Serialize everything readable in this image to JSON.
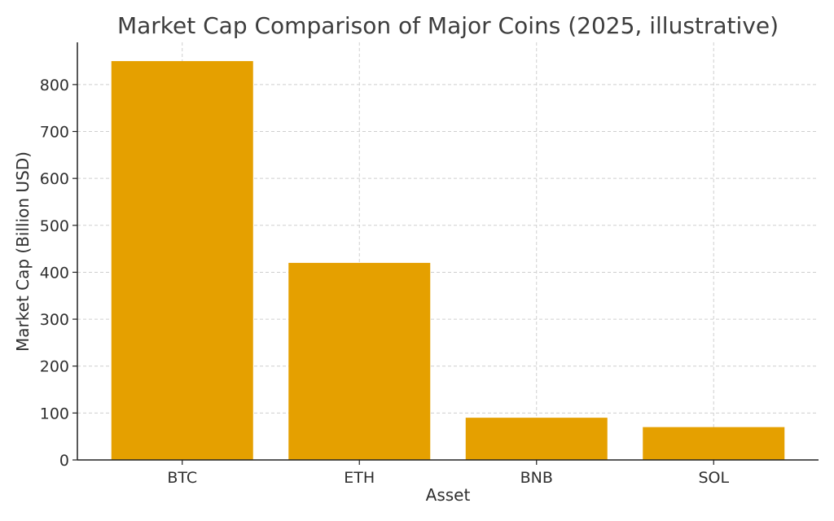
{
  "chart_data": {
    "type": "bar",
    "title": "Market Cap Comparison of Major Coins (2025, illustrative)",
    "xlabel": "Asset",
    "ylabel": "Market Cap (Billion USD)",
    "categories": [
      "BTC",
      "ETH",
      "BNB",
      "SOL"
    ],
    "values": [
      850,
      420,
      90,
      70
    ],
    "ylim": [
      0,
      890
    ],
    "yticks": [
      0,
      100,
      200,
      300,
      400,
      500,
      600,
      700,
      800
    ],
    "grid": true,
    "bar_color": "#e5a000"
  }
}
